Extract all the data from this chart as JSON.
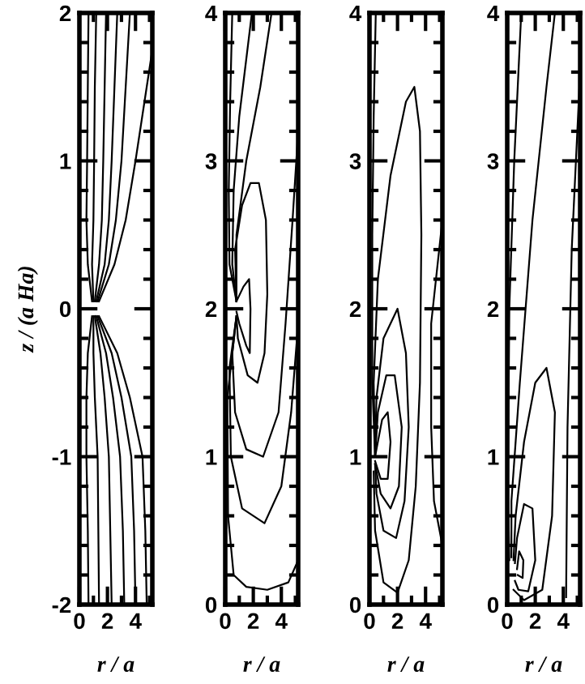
{
  "chart_data": [
    {
      "type": "line",
      "xlabel": "r / a",
      "ylabel": "z / (a Ha)",
      "xlim": [
        0,
        5.2
      ],
      "xticks": [
        0,
        2,
        4
      ],
      "ylim": [
        -2,
        2
      ],
      "yticks": [
        -2,
        -1,
        0,
        1,
        2
      ],
      "line_style": "solid",
      "series": [
        {
          "color": "#000000",
          "x": [
            0.9,
            0.6,
            0.5,
            0.55,
            0.6,
            0.65
          ],
          "values": [
            0.05,
            0.3,
            0.6,
            1,
            1.5,
            2
          ]
        },
        {
          "color": "#000000",
          "x": [
            1.0,
            0.9,
            1.0,
            1.05,
            1.1,
            1.2
          ],
          "values": [
            0.05,
            0.3,
            0.6,
            1,
            1.5,
            2
          ]
        },
        {
          "color": "#000000",
          "x": [
            1.1,
            1.4,
            1.6,
            1.7,
            1.8,
            1.9
          ],
          "values": [
            0.05,
            0.3,
            0.6,
            1,
            1.5,
            2
          ]
        },
        {
          "color": "#000000",
          "x": [
            1.2,
            1.8,
            2.1,
            2.3,
            2.5,
            2.7
          ],
          "values": [
            0.05,
            0.3,
            0.6,
            1,
            1.5,
            2
          ]
        },
        {
          "color": "#000000",
          "x": [
            1.3,
            2.1,
            2.6,
            3.0,
            3.3,
            3.6
          ],
          "values": [
            0.05,
            0.3,
            0.6,
            1,
            1.5,
            2
          ]
        },
        {
          "color": "#000000",
          "x": [
            1.4,
            2.5,
            3.3,
            4.0,
            4.8,
            5.2
          ],
          "values": [
            0.05,
            0.3,
            0.6,
            1,
            1.5,
            1.75
          ]
        },
        {
          "color": "#000000",
          "x": [
            0.9,
            0.6,
            0.5,
            0.5,
            0.6,
            0.65
          ],
          "values": [
            -0.05,
            -0.3,
            -0.6,
            -1,
            -1.5,
            -2
          ]
        },
        {
          "color": "#000000",
          "x": [
            1.0,
            1.0,
            1.1,
            1.3,
            1.35,
            1.4
          ],
          "values": [
            -0.05,
            -0.3,
            -0.6,
            -1,
            -1.5,
            -2
          ]
        },
        {
          "color": "#000000",
          "x": [
            1.1,
            1.5,
            1.8,
            2.1,
            2.2,
            2.3
          ],
          "values": [
            -0.05,
            -0.3,
            -0.6,
            -1,
            -1.5,
            -2
          ]
        },
        {
          "color": "#000000",
          "x": [
            1.2,
            1.9,
            2.4,
            2.9,
            3.1,
            3.2
          ],
          "values": [
            -0.05,
            -0.3,
            -0.6,
            -1,
            -1.5,
            -2
          ]
        },
        {
          "color": "#000000",
          "x": [
            1.3,
            2.3,
            3.0,
            3.7,
            3.9,
            4.0
          ],
          "values": [
            -0.05,
            -0.3,
            -0.6,
            -1,
            -1.5,
            -2
          ]
        },
        {
          "color": "#000000",
          "x": [
            1.4,
            2.7,
            3.6,
            4.5,
            4.7,
            4.8
          ],
          "values": [
            -0.05,
            -0.3,
            -0.6,
            -1,
            -1.5,
            -2
          ]
        }
      ]
    },
    {
      "type": "line",
      "xlabel": "r / a",
      "xlim": [
        0,
        5.2
      ],
      "xticks": [
        0,
        2,
        4
      ],
      "ylim": [
        0,
        4
      ],
      "yticks": [
        0,
        1,
        2,
        3,
        4
      ],
      "line_style": "solid",
      "series": [
        {
          "color": "#000000",
          "x": [
            0.8,
            1.3,
            1.7,
            1.8,
            1.75,
            1.5,
            1.0,
            0.8
          ],
          "values": [
            2.05,
            2.15,
            2.2,
            2.0,
            1.7,
            1.75,
            1.9,
            1.98
          ]
        },
        {
          "color": "#000000",
          "x": [
            0.8,
            0.7,
            1.2,
            1.8,
            2.4,
            2.9,
            3.0,
            2.8,
            2.3,
            1.6,
            0.9,
            0.8
          ],
          "values": [
            2.05,
            2.4,
            2.7,
            2.85,
            2.85,
            2.6,
            2.1,
            1.7,
            1.5,
            1.55,
            1.8,
            1.95
          ]
        },
        {
          "color": "#000000",
          "x": [
            0.8,
            0.3,
            0.25,
            0.35,
            0.5
          ],
          "values": [
            2.05,
            2.3,
            2.8,
            3.4,
            4.0
          ]
        },
        {
          "color": "#000000",
          "x": [
            0.8,
            0.5,
            0.6,
            1.0,
            1.9
          ],
          "values": [
            2.05,
            2.3,
            2.8,
            3.3,
            4.0
          ]
        },
        {
          "color": "#000000",
          "x": [
            0.8,
            0.8,
            1.5,
            2.5,
            3.3
          ],
          "values": [
            2.05,
            2.5,
            3.0,
            3.5,
            4.0
          ]
        },
        {
          "color": "#000000",
          "x": [
            0.8,
            0.5,
            0.7,
            1.5,
            2.7,
            3.8,
            4.3,
            4.8,
            5.2
          ],
          "values": [
            1.95,
            1.7,
            1.3,
            1.05,
            1.0,
            1.3,
            1.9,
            2.6,
            3.2
          ]
        },
        {
          "color": "#000000",
          "x": [
            0.8,
            0.3,
            0.4,
            1.2,
            2.8,
            4.0,
            4.7,
            5.2
          ],
          "values": [
            1.95,
            1.6,
            1.0,
            0.65,
            0.55,
            0.8,
            1.3,
            1.9
          ]
        },
        {
          "color": "#000000",
          "x": [
            0.8,
            0.15,
            0.2,
            0.6,
            1.5,
            3.0,
            4.5,
            5.2
          ],
          "values": [
            1.95,
            1.4,
            0.6,
            0.2,
            0.12,
            0.1,
            0.15,
            0.3
          ]
        }
      ]
    },
    {
      "type": "line",
      "xlabel": "r / a",
      "xlim": [
        0,
        5.2
      ],
      "xticks": [
        0,
        2,
        4
      ],
      "ylim": [
        0,
        4
      ],
      "yticks": [
        0,
        1,
        2,
        3,
        4
      ],
      "line_style": "solid",
      "series": [
        {
          "color": "#000000",
          "x": [
            0.4,
            0.9,
            1.3,
            1.5,
            1.3,
            0.8,
            0.4
          ],
          "values": [
            1.0,
            1.25,
            1.3,
            1.1,
            0.85,
            0.85,
            0.97
          ]
        },
        {
          "color": "#000000",
          "x": [
            0.4,
            0.6,
            1.2,
            1.8,
            2.3,
            2.1,
            1.5,
            0.8,
            0.4
          ],
          "values": [
            1.0,
            1.3,
            1.55,
            1.55,
            1.2,
            0.8,
            0.65,
            0.75,
            0.95
          ]
        },
        {
          "color": "#000000",
          "x": [
            0.4,
            0.5,
            1.0,
            2.0,
            2.6,
            2.8,
            2.5,
            1.9,
            1.0,
            0.5,
            0.4
          ],
          "values": [
            1.0,
            1.4,
            1.8,
            2.0,
            1.7,
            1.2,
            0.7,
            0.45,
            0.5,
            0.75,
            0.95
          ]
        },
        {
          "color": "#000000",
          "x": [
            0.4,
            0.3,
            0.6,
            1.5,
            2.6,
            3.2,
            3.6,
            3.7,
            3.6,
            3.3,
            2.8,
            2.0,
            1.0,
            0.4,
            0.3
          ],
          "values": [
            1.0,
            1.5,
            2.2,
            2.9,
            3.4,
            3.5,
            3.2,
            2.5,
            1.5,
            0.8,
            0.3,
            0.08,
            0.15,
            0.5,
            0.9
          ]
        },
        {
          "color": "#000000",
          "x": [
            0.4,
            0.2,
            0.2,
            0.3,
            0.45
          ],
          "values": [
            1.0,
            1.5,
            2.5,
            3.3,
            4.0
          ]
        },
        {
          "color": "#000000",
          "x": [
            5.2,
            4.4,
            4.4,
            4.6,
            5.2
          ],
          "values": [
            2.6,
            1.9,
            1.2,
            0.7,
            0.4
          ]
        }
      ]
    },
    {
      "type": "line",
      "xlabel": "r / a",
      "xlim": [
        0,
        5.2
      ],
      "xticks": [
        0,
        2,
        4
      ],
      "ylim": [
        0,
        4
      ],
      "yticks": [
        0,
        1,
        2,
        3,
        4
      ],
      "line_style": "solid",
      "series": [
        {
          "color": "#000000",
          "x": [
            0.7,
            0.85,
            1.15,
            1.1,
            0.75
          ],
          "values": [
            0.24,
            0.36,
            0.3,
            0.18,
            0.2
          ]
        },
        {
          "color": "#000000",
          "x": [
            0.55,
            0.7,
            1.2,
            1.8,
            2.0,
            1.5,
            0.8,
            0.55
          ],
          "values": [
            0.28,
            0.45,
            0.68,
            0.65,
            0.3,
            0.09,
            0.1,
            0.16
          ]
        },
        {
          "color": "#000000",
          "x": [
            0.45,
            0.6,
            1.2,
            2.0,
            2.8,
            3.4,
            3.2,
            2.5,
            1.2,
            0.45
          ],
          "values": [
            0.3,
            0.6,
            1.1,
            1.5,
            1.6,
            1.3,
            0.6,
            0.1,
            0.03,
            0.1
          ]
        },
        {
          "color": "#000000",
          "x": [
            0.3,
            0.3,
            0.9,
            1.8,
            2.8,
            3.4
          ],
          "values": [
            0.32,
            0.7,
            1.5,
            2.6,
            3.5,
            4.0
          ]
        },
        {
          "color": "#000000",
          "x": [
            0.15,
            0.05,
            0.15,
            0.5,
            1.0
          ],
          "values": [
            0.3,
            0.8,
            2.0,
            3.0,
            4.0
          ]
        },
        {
          "color": "#000000",
          "x": [
            5.2,
            4.6,
            4.3,
            4.2
          ],
          "values": [
            3.6,
            2.4,
            1.2,
            0.05
          ]
        }
      ]
    }
  ]
}
